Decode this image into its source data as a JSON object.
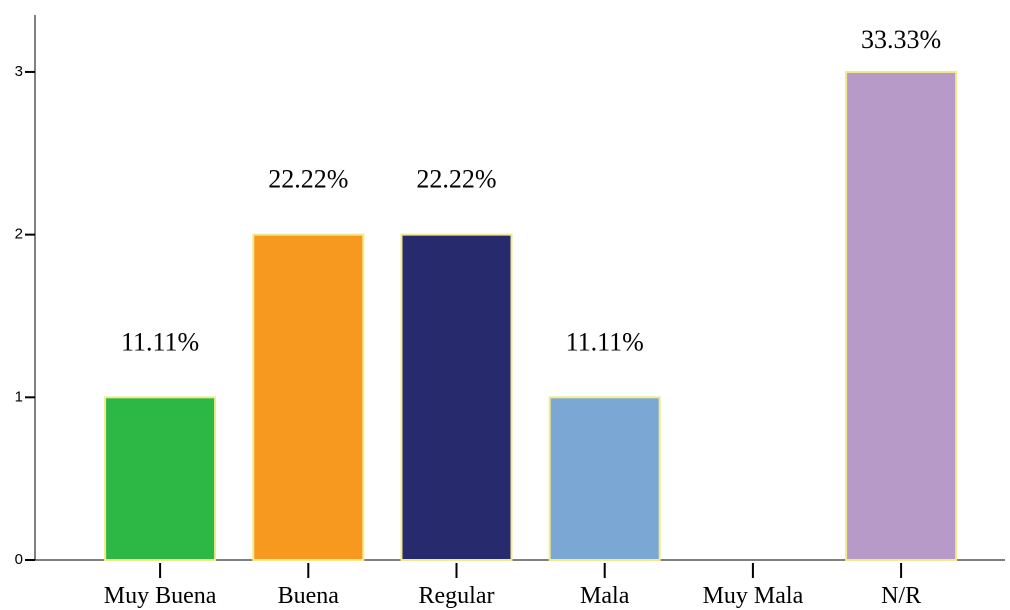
{
  "chart_data": {
    "type": "bar",
    "categories": [
      "Muy Buena",
      "Buena",
      "Regular",
      "Mala",
      "Muy Mala",
      "N/R"
    ],
    "values": [
      1,
      2,
      2,
      1,
      0,
      3
    ],
    "colors": [
      "#2db845",
      "#f7991f",
      "#282a6e",
      "#7aa7d4",
      "#e0e0e0",
      "#b79ac8"
    ],
    "edge_color": "#f2ea8c",
    "percent_labels": [
      "11.11%",
      "22.22%",
      "22.22%",
      "11.11%",
      null,
      "33.33%"
    ],
    "ylim": [
      0,
      3.35
    ],
    "yticks": [
      0,
      1,
      2,
      3
    ]
  }
}
